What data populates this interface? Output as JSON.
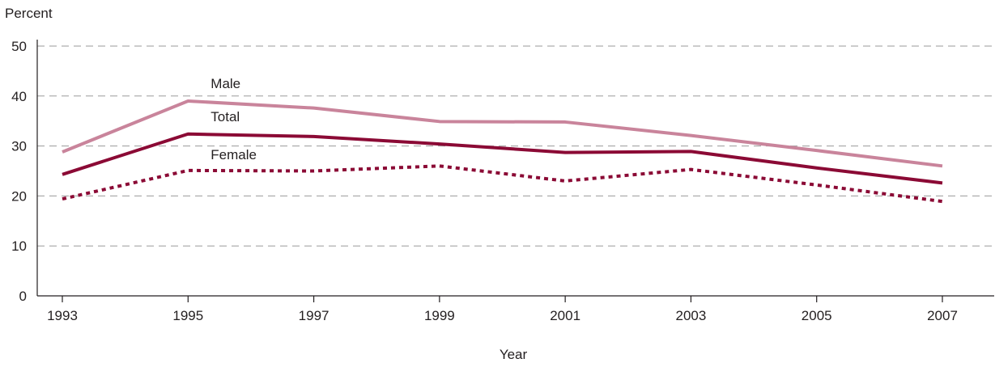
{
  "chart_data": {
    "type": "line",
    "title": "",
    "xlabel": "Year",
    "ylabel": "Percent",
    "x": [
      1993,
      1995,
      1997,
      1999,
      2001,
      2003,
      2005,
      2007
    ],
    "xticks": [
      "1993",
      "1995",
      "1997",
      "1999",
      "2001",
      "2003",
      "2005",
      "2007"
    ],
    "yticks": [
      "0",
      "10",
      "20",
      "30",
      "40",
      "50"
    ],
    "ylim": [
      0,
      50
    ],
    "grid": "horizontal dashed",
    "series": [
      {
        "name": "Male",
        "color": "#c9849b",
        "style": "solid",
        "values": [
          28.8,
          39.0,
          37.6,
          34.9,
          34.8,
          32.1,
          29.1,
          26.0
        ]
      },
      {
        "name": "Total",
        "color": "#8b0a35",
        "style": "solid",
        "values": [
          24.3,
          32.4,
          31.9,
          30.4,
          28.7,
          28.9,
          25.6,
          22.6
        ]
      },
      {
        "name": "Female",
        "color": "#8b0a35",
        "style": "dotted",
        "values": [
          19.4,
          25.1,
          25.0,
          26.0,
          23.0,
          25.3,
          22.2,
          18.9
        ]
      }
    ]
  }
}
